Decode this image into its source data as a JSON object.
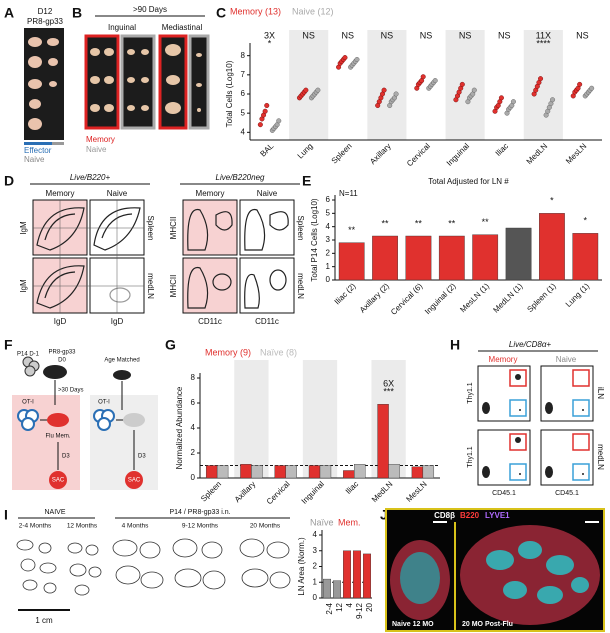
{
  "panel_labels": [
    "A",
    "B",
    "C",
    "D",
    "E",
    "F",
    "G",
    "H",
    "I",
    "J"
  ],
  "panel_a": {
    "day": "D12",
    "infection": "PR8-gp33",
    "legend": [
      "Effector",
      "Naive"
    ]
  },
  "panel_b": {
    "title": ">90 Days",
    "sites": [
      "Inguinal",
      "Mediastinal"
    ],
    "legend": [
      "Memory",
      "Naive"
    ]
  },
  "panel_d": {
    "gates": [
      "Live/B220+",
      "Live/B220neg"
    ],
    "columns": [
      "Memory",
      "Naive",
      "Memory",
      "Naive"
    ],
    "rows": [
      "Spleen",
      "medLN",
      "Spleen",
      "medLN"
    ],
    "y_axes": [
      "IgM",
      "IgM",
      "MHCII",
      "MHCII"
    ],
    "x_axes": [
      "IgD",
      "IgD",
      "CD11c",
      "CD11c"
    ]
  },
  "panel_f": {
    "p14": "P14 D-1",
    "infection": "PR8-gp33",
    "d0": "D0",
    "days": ">30 Days",
    "control": "Age Matched",
    "oti": [
      "OT-I",
      "OT-I"
    ],
    "flu": "Flu Mem.",
    "d3": [
      "D3",
      "D3"
    ],
    "sac": [
      "SAC",
      "SAC"
    ]
  },
  "panel_h": {
    "gate": "Live/CD8α+",
    "columns": [
      "Memory",
      "Naive"
    ],
    "rows": [
      "iLN",
      "medLN"
    ],
    "y_axis": [
      "Thy1.1",
      "Thy1.1"
    ],
    "x_axis": [
      "CD45.1",
      "CD45.1"
    ]
  },
  "panel_i": {
    "groups": [
      "NAIVE",
      "P14 / PR8-gp33 i.n."
    ],
    "ages": [
      "2-4 Months",
      "12 Months",
      "4 Months",
      "9-12 Months",
      "20 Months"
    ],
    "scale": "1 cm"
  },
  "panel_j": {
    "stains": [
      "CD8β",
      "B220",
      "LYVE1"
    ],
    "images": [
      "Naive 12 MO",
      "20 MO Post-Flu"
    ]
  },
  "chart_data": [
    {
      "type": "dot",
      "y_label": "Total Cells (Log10)",
      "categories": [
        "BAL",
        "Lung",
        "Spleen",
        "Axillary",
        "Cervical",
        "Inguinal",
        "Iliac",
        "MedLN",
        "MesLN"
      ],
      "annotations": [
        [
          "3X",
          "*"
        ],
        [
          "NS"
        ],
        [
          "NS"
        ],
        [
          "NS"
        ],
        [
          "NS"
        ],
        [
          "NS"
        ],
        [
          "NS"
        ],
        [
          "11X",
          "****"
        ],
        [
          "NS"
        ]
      ],
      "series": [
        {
          "name": "Memory (13)",
          "color": "#e0312e",
          "values": [
            [
              4.4,
              4.7,
              4.9,
              5.1,
              5.4
            ],
            [
              5.8,
              5.9,
              6.0,
              6.1,
              6.2
            ],
            [
              7.4,
              7.6,
              7.7,
              7.8,
              7.9
            ],
            [
              5.4,
              5.6,
              5.8,
              6.0,
              6.2
            ],
            [
              6.3,
              6.5,
              6.6,
              6.7,
              6.9
            ],
            [
              5.7,
              5.9,
              6.1,
              6.3,
              6.5
            ],
            [
              5.1,
              5.3,
              5.4,
              5.6,
              5.8
            ],
            [
              6.0,
              6.2,
              6.4,
              6.6,
              6.8
            ],
            [
              5.9,
              6.1,
              6.2,
              6.3,
              6.5
            ]
          ]
        },
        {
          "name": "Naive (12)",
          "color": "#aaaaaa",
          "values": [
            [
              4.1,
              4.2,
              4.3,
              4.4,
              4.6
            ],
            [
              5.8,
              5.9,
              6.0,
              6.1,
              6.2
            ],
            [
              7.4,
              7.5,
              7.6,
              7.7,
              7.8
            ],
            [
              5.4,
              5.6,
              5.7,
              5.8,
              6.0
            ],
            [
              6.3,
              6.4,
              6.5,
              6.6,
              6.7
            ],
            [
              5.6,
              5.8,
              5.9,
              6.0,
              6.2
            ],
            [
              5.0,
              5.2,
              5.3,
              5.4,
              5.6
            ],
            [
              4.9,
              5.1,
              5.3,
              5.5,
              5.7
            ],
            [
              5.9,
              6.0,
              6.1,
              6.2,
              6.3
            ]
          ]
        }
      ],
      "ylim": [
        3.6,
        8.4
      ],
      "yticks": [
        4,
        5,
        6,
        7,
        8
      ]
    },
    {
      "type": "bar",
      "title": "Total Adjusted for LN #",
      "note": "N=11",
      "y_label": "Total P14 Cells (Log10)",
      "categories": [
        "Iliac (2)",
        "Axillary (2)",
        "Cervical (6)",
        "Inguinal (2)",
        "MesLN (1)",
        "MedLN (1)",
        "Spleen (1)",
        "Lung (1)"
      ],
      "values": [
        2.8,
        3.3,
        3.3,
        3.3,
        3.4,
        3.9,
        5.0,
        3.5
      ],
      "colors": [
        "#e0312e",
        "#e0312e",
        "#e0312e",
        "#e0312e",
        "#e0312e",
        "#555555",
        "#e0312e",
        "#e0312e"
      ],
      "annotations": [
        [
          "**"
        ],
        [
          "**"
        ],
        [
          "**"
        ],
        [
          "**"
        ],
        [
          "**"
        ],
        [],
        [
          "*"
        ],
        [
          "*"
        ]
      ],
      "ylim": [
        0,
        6
      ],
      "yticks": [
        0,
        1,
        2,
        3,
        4,
        5,
        6
      ]
    },
    {
      "type": "bar",
      "y_label": "Normalized Abundance",
      "categories": [
        "Spleen",
        "Axillary",
        "Cervical",
        "Inguinal",
        "Iliac",
        "MedLN",
        "MesLN"
      ],
      "series": [
        {
          "name": "Memory (9)",
          "color": "#e0312e",
          "values": [
            1.0,
            1.1,
            1.0,
            1.0,
            0.6,
            5.9,
            0.9
          ]
        },
        {
          "name": "Naïve (8)",
          "color": "#bbbbbb",
          "values": [
            1.0,
            1.0,
            1.0,
            1.0,
            1.1,
            1.1,
            1.0
          ]
        }
      ],
      "annotations": [
        [],
        [],
        [],
        [],
        [],
        [
          "6X",
          "***"
        ],
        []
      ],
      "reference_line": 1,
      "ylim": [
        0,
        8
      ],
      "yticks": [
        0,
        2,
        4,
        6,
        8
      ]
    },
    {
      "type": "bar",
      "y_label": "LN Area (Norm.)",
      "legend": [
        {
          "name": "Naïve",
          "color": "#999999"
        },
        {
          "name": "Mem.",
          "color": "#e0312e"
        }
      ],
      "categories": [
        "2-4",
        "12",
        "4",
        "9-12",
        "20"
      ],
      "values": [
        1.2,
        1.1,
        3.0,
        3.0,
        2.8
      ],
      "colors": [
        "#999999",
        "#999999",
        "#e0312e",
        "#e0312e",
        "#e0312e"
      ],
      "reference_line": 1,
      "ylim": [
        0,
        4
      ],
      "yticks": [
        0,
        1,
        2,
        3,
        4
      ]
    }
  ]
}
